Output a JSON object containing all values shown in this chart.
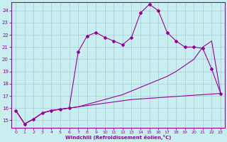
{
  "bg_color": "#c8eef0",
  "line_color": "#990099",
  "xlabel": "Windchill (Refroidissement éolien,°C)",
  "x_ticks": [
    0,
    1,
    2,
    3,
    4,
    5,
    6,
    7,
    8,
    9,
    10,
    11,
    12,
    13,
    14,
    15,
    16,
    17,
    18,
    19,
    20,
    21,
    22,
    23
  ],
  "y_ticks": [
    15,
    16,
    17,
    18,
    19,
    20,
    21,
    22,
    23,
    24
  ],
  "ylim": [
    14.4,
    24.7
  ],
  "xlim": [
    -0.5,
    23.5
  ],
  "line1_x": [
    0,
    1,
    2,
    3,
    4,
    5,
    6,
    7,
    8,
    9,
    10,
    11,
    12,
    13,
    14,
    15,
    16,
    17,
    18,
    19,
    20,
    21,
    22,
    23
  ],
  "line1_y": [
    15.8,
    14.7,
    15.1,
    15.6,
    15.8,
    15.9,
    16.0,
    20.6,
    21.9,
    22.2,
    21.8,
    21.5,
    21.2,
    21.8,
    23.8,
    24.5,
    24.0,
    22.2,
    21.5,
    21.0,
    21.0,
    20.9,
    19.2,
    17.2
  ],
  "line2_x": [
    0,
    1,
    2,
    3,
    4,
    5,
    6,
    7,
    8,
    9,
    10,
    11,
    12,
    13,
    14,
    15,
    16,
    17,
    18,
    19,
    20,
    21,
    22,
    23
  ],
  "line2_y": [
    15.8,
    14.7,
    15.1,
    15.6,
    15.8,
    15.9,
    16.0,
    16.1,
    16.3,
    16.5,
    16.7,
    16.9,
    17.1,
    17.4,
    17.7,
    18.0,
    18.3,
    18.6,
    19.0,
    19.5,
    20.0,
    21.0,
    21.5,
    17.2
  ],
  "line3_x": [
    0,
    1,
    2,
    3,
    4,
    5,
    6,
    7,
    8,
    9,
    10,
    11,
    12,
    13,
    14,
    15,
    16,
    17,
    18,
    19,
    20,
    21,
    22,
    23
  ],
  "line3_y": [
    15.8,
    14.7,
    15.1,
    15.6,
    15.8,
    15.9,
    16.0,
    16.1,
    16.2,
    16.3,
    16.4,
    16.5,
    16.6,
    16.7,
    16.75,
    16.8,
    16.85,
    16.9,
    16.95,
    17.0,
    17.05,
    17.1,
    17.15,
    17.2
  ]
}
